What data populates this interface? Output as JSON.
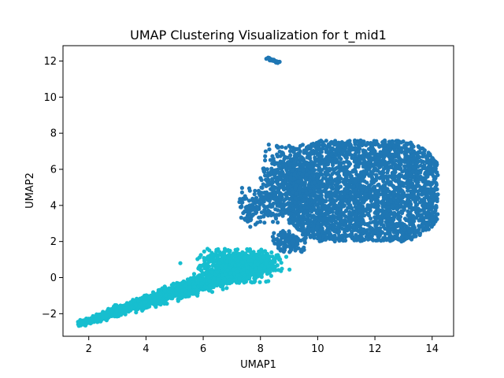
{
  "chart_data": {
    "type": "scatter",
    "title": "UMAP Clustering Visualization for t_mid1",
    "xlabel": "UMAP1",
    "ylabel": "UMAP2",
    "xlim": [
      1.1,
      14.75
    ],
    "ylim": [
      -3.25,
      12.85
    ],
    "xticks": [
      2,
      4,
      6,
      8,
      10,
      12,
      14
    ],
    "yticks": [
      -2,
      0,
      2,
      4,
      6,
      8,
      10,
      12
    ],
    "grid": false,
    "legend": "none",
    "series": [
      {
        "color": "#1f77b4",
        "regions": [
          {
            "shape": "blob",
            "x": [
              9.0,
              14.2
            ],
            "y": [
              2.0,
              7.6
            ],
            "n": 2800,
            "density": "dense"
          },
          {
            "shape": "blob",
            "x": [
              8.0,
              10.0
            ],
            "y": [
              3.0,
              7.4
            ],
            "n": 500,
            "density": "medium"
          },
          {
            "shape": "blob",
            "x": [
              7.2,
              8.5
            ],
            "y": [
              2.8,
              5.0
            ],
            "n": 120,
            "density": "sparse"
          },
          {
            "shape": "blob",
            "x": [
              8.4,
              9.6
            ],
            "y": [
              1.4,
              2.6
            ],
            "n": 120,
            "density": "sparse"
          },
          {
            "shape": "line",
            "x": [
              8.25,
              8.65
            ],
            "y": [
              12.15,
              11.92
            ],
            "n": 30
          }
        ],
        "sample_points": [
          [
            8.3,
            12.15
          ],
          [
            8.45,
            12.05
          ],
          [
            8.6,
            11.95
          ],
          [
            11.5,
            5.0
          ],
          [
            13.9,
            6.0
          ],
          [
            10.0,
            3.0
          ],
          [
            9.0,
            7.3
          ],
          [
            11.3,
            7.6
          ],
          [
            7.5,
            3.3
          ],
          [
            8.7,
            1.5
          ]
        ]
      },
      {
        "color": "#17becf",
        "regions": [
          {
            "shape": "band",
            "from": [
              1.7,
              -2.55
            ],
            "to": [
              8.3,
              0.9
            ],
            "width": 0.35,
            "n": 1800
          },
          {
            "shape": "blob",
            "x": [
              5.8,
              8.4
            ],
            "y": [
              -0.3,
              1.6
            ],
            "n": 500,
            "density": "medium"
          }
        ],
        "sample_points": [
          [
            1.7,
            -2.5
          ],
          [
            2.5,
            -2.2
          ],
          [
            3.5,
            -1.6
          ],
          [
            4.5,
            -0.9
          ],
          [
            5.5,
            -0.3
          ],
          [
            6.5,
            0.3
          ],
          [
            7.5,
            0.7
          ],
          [
            8.2,
            0.8
          ],
          [
            6.8,
            1.5
          ],
          [
            5.2,
            0.8
          ]
        ]
      }
    ]
  }
}
